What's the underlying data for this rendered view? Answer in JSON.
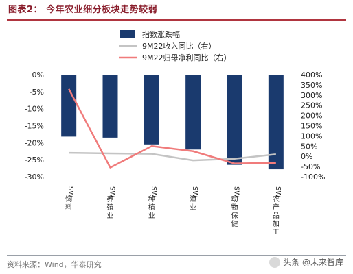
{
  "title": "图表2：  今年农业细分板块走势较弱",
  "source": "资料来源：Wind，华泰研究",
  "watermark": "头条 @未来智库",
  "chart_data": {
    "type": "bar",
    "categories": [
      [
        "SW",
        "饲",
        "料"
      ],
      [
        "SW",
        "养",
        "殖",
        "业"
      ],
      [
        "SW",
        "种",
        "植",
        "业"
      ],
      [
        "SW",
        "渔",
        "业"
      ],
      [
        "SW",
        "动",
        "物",
        "保",
        "健"
      ],
      [
        "SW",
        "农",
        "产",
        "品",
        "加",
        "工"
      ]
    ],
    "series": [
      {
        "name": "指数涨跌幅",
        "kind": "bar",
        "axis": "left",
        "color": "#1a3a6e",
        "values": [
          -18.2,
          -18.5,
          -20.5,
          -22.0,
          -26.5,
          -27.8
        ]
      },
      {
        "name": "9M22收入同比（右）",
        "kind": "line",
        "axis": "right",
        "color": "#c4c4c4",
        "values": [
          17,
          14,
          12,
          -20,
          -12,
          10
        ]
      },
      {
        "name": "9M22归母净利同比（右）",
        "kind": "line",
        "axis": "right",
        "color": "#f07b7b",
        "values": [
          330,
          -55,
          50,
          25,
          -35,
          -32
        ]
      }
    ],
    "left_axis": {
      "min": -30,
      "max": 0,
      "step": 5,
      "suffix": "%"
    },
    "right_axis": {
      "min": -100,
      "max": 400,
      "step": 50,
      "suffix": "%"
    },
    "legend_position": "top-center"
  }
}
